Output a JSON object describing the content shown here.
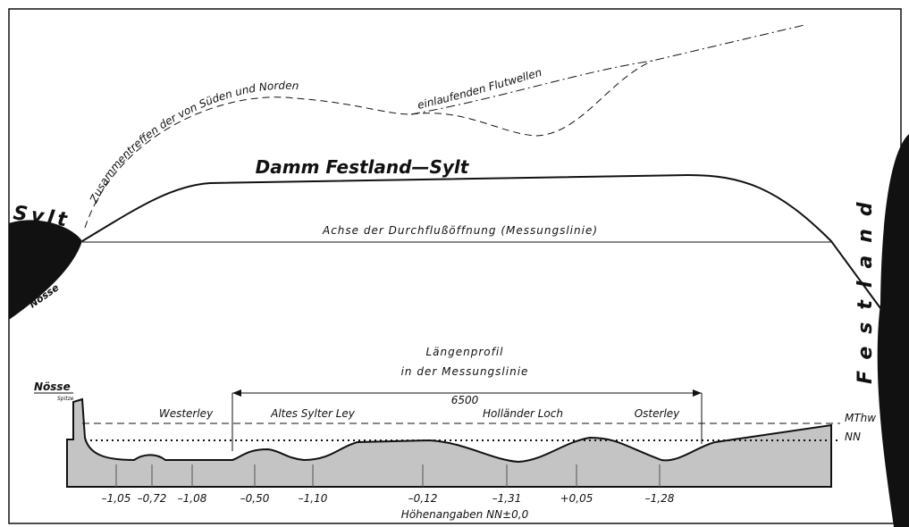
{
  "labels": {
    "sylt": "Sylt",
    "noesse": "Nösse",
    "festland": "Festland",
    "flutwellen_1": "Zusammentreffen der von Süden und Norden",
    "flutwellen_2": "einlaufenden Flutwellen",
    "damm": "Damm Festland—Sylt",
    "achse": "Achse der Durchflußöffnung (Messungslinie)"
  },
  "profile": {
    "title": "Längenprofil",
    "subtitle": "in der Messungslinie",
    "noesse": "Nösse",
    "spitze": "Spitze",
    "length": "6500",
    "sections": [
      "Westerley",
      "Altes Sylter Ley",
      "Holländer Loch",
      "Osterley"
    ],
    "levels": [
      "MThw",
      "NN"
    ],
    "depths": [
      "–1,05",
      "–0,72",
      "–1,08",
      "–0,50",
      "–1,10",
      "–0,12",
      "–1,31",
      "+0,05",
      "–1,28"
    ],
    "footer": "Höhenangaben NN±0,0"
  }
}
